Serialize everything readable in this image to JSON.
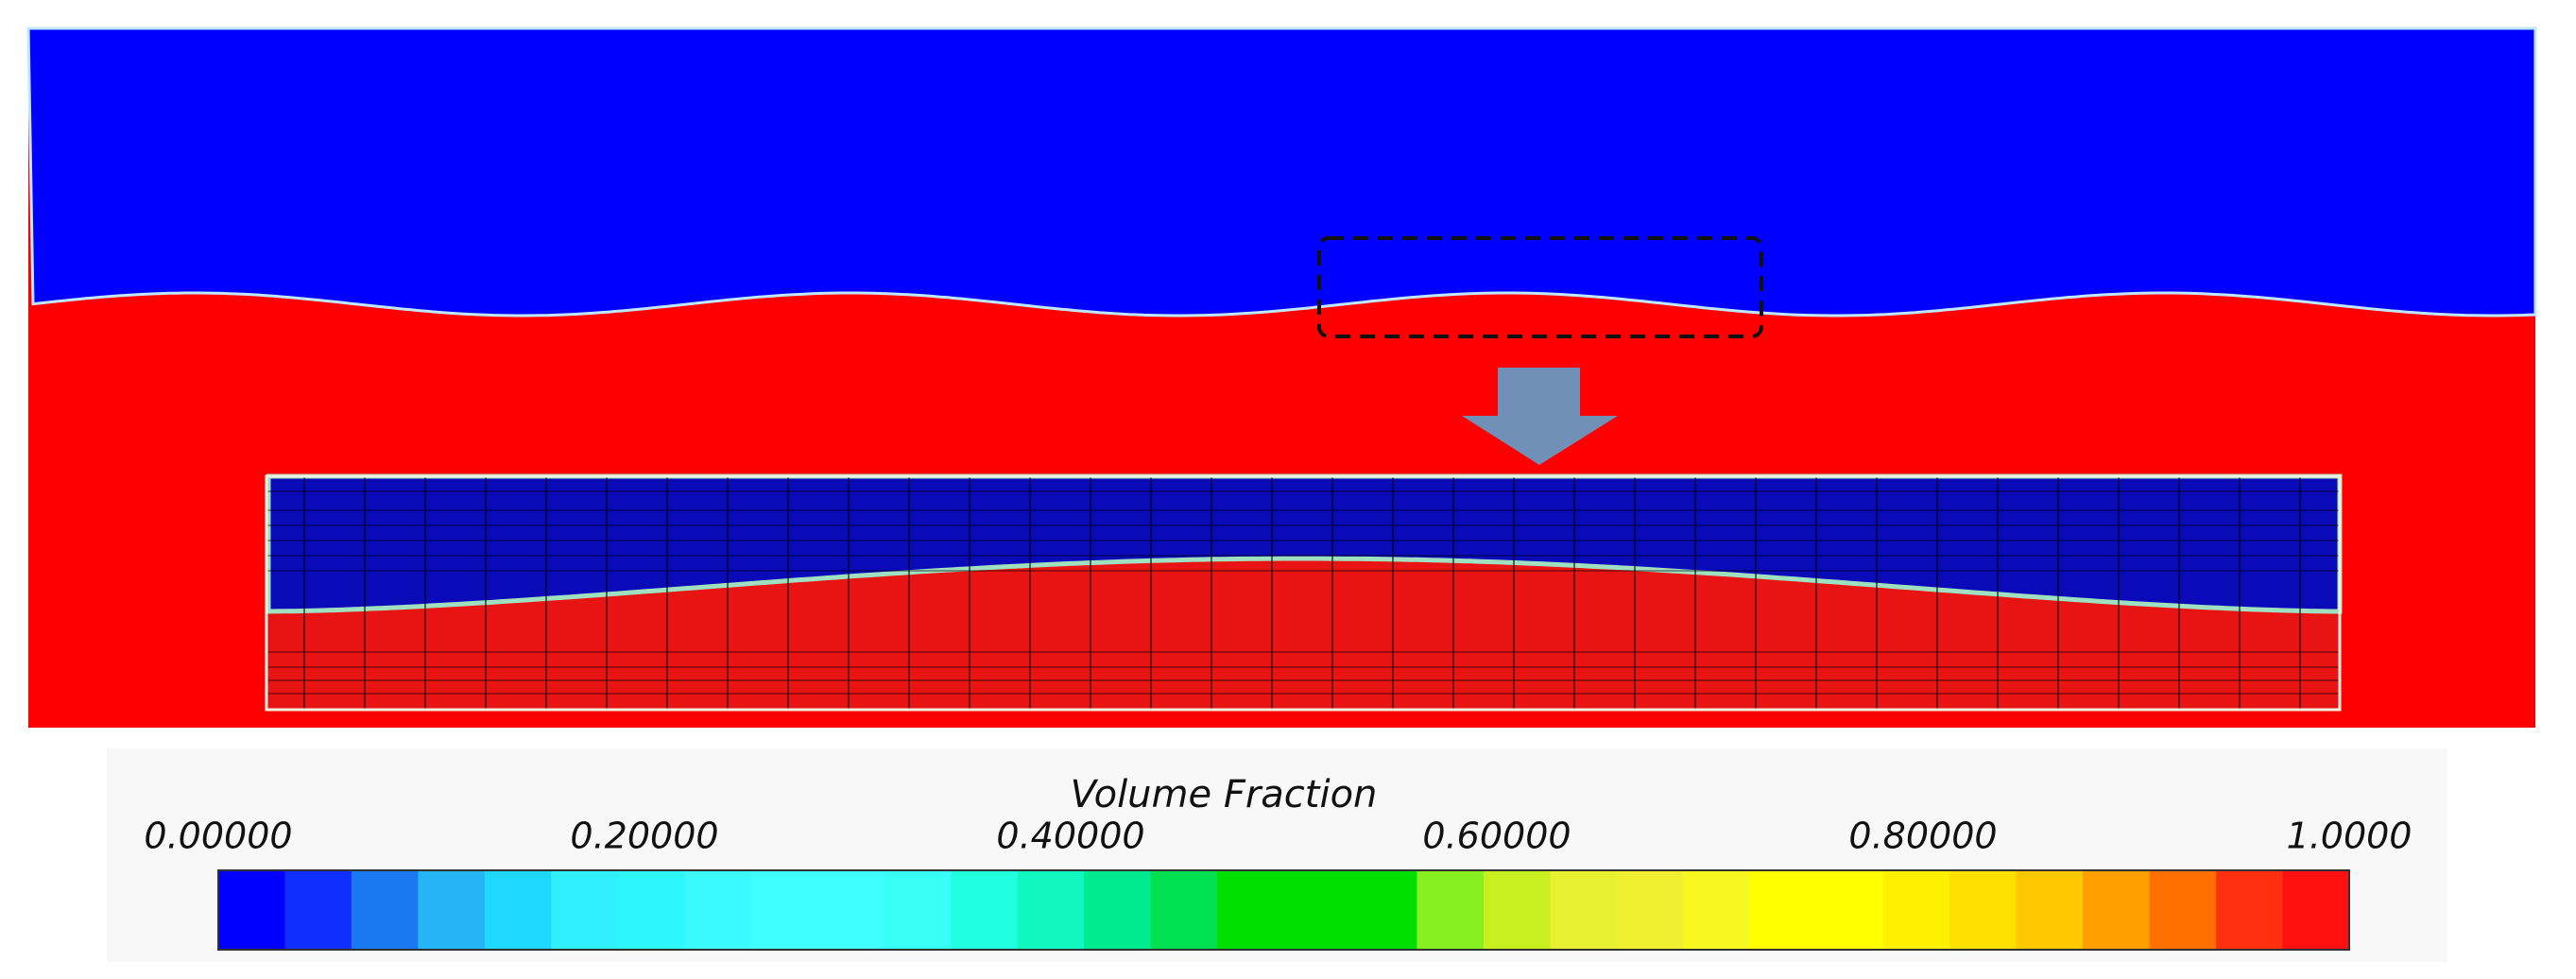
{
  "colorbar": {
    "title": "Volume Fraction",
    "lim": [
      0,
      1
    ],
    "ticks": [
      {
        "value": 0,
        "label": "0.00000"
      },
      {
        "value": 0.2,
        "label": "0.20000"
      },
      {
        "value": 0.4,
        "label": "0.40000"
      },
      {
        "value": 0.6,
        "label": "0.60000"
      },
      {
        "value": 0.8,
        "label": "0.80000"
      },
      {
        "value": 1,
        "label": "1.0000"
      }
    ],
    "colors": [
      "#0000ff",
      "#0f2fff",
      "#1a78f0",
      "#25b4f5",
      "#1ed8ff",
      "#30f0ff",
      "#2ff5ff",
      "#3afaff",
      "#40ffff",
      "#40ffff",
      "#38fff8",
      "#20ffe0",
      "#10f8c0",
      "#00ea90",
      "#00e050",
      "#00e000",
      "#00e000",
      "#00e000",
      "#88f020",
      "#c8f020",
      "#e8f030",
      "#f0f030",
      "#f8f820",
      "#ffff00",
      "#ffff00",
      "#fff000",
      "#ffe000",
      "#ffc800",
      "#ffa000",
      "#ff7000",
      "#ff3010",
      "#ff1010"
    ]
  }
}
